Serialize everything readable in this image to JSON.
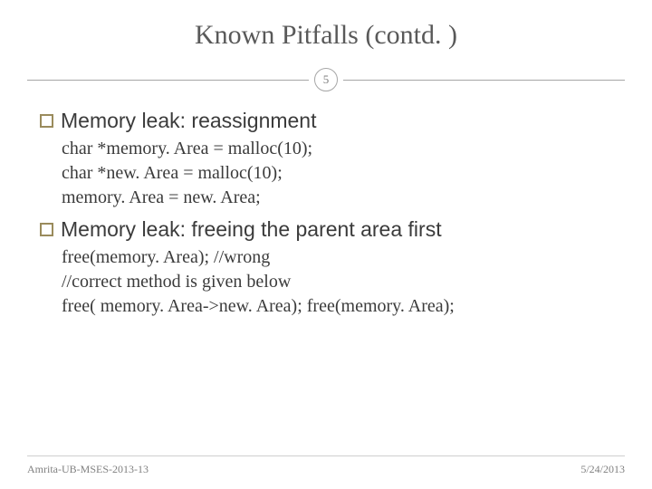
{
  "slide": {
    "title": "Known Pitfalls (contd. )",
    "page_number": "5",
    "sections": [
      {
        "heading": "Memory leak: reassignment",
        "lines": [
          "char *memory. Area = malloc(10);",
          "char *new. Area = malloc(10);",
          "memory. Area = new. Area;"
        ]
      },
      {
        "heading": "Memory leak: freeing the parent area first",
        "lines": [
          "free(memory. Area); //wrong",
          "//correct method is given below",
          "free( memory. Area->new. Area); free(memory. Area);"
        ]
      }
    ],
    "footer_left": "Amrita-UB-MSES-2013-13",
    "footer_right": "5/24/2013"
  },
  "style": {
    "title_color": "#595959",
    "title_fontsize": 30,
    "heading_fontsize": 23,
    "body_fontsize": 20,
    "bullet_border_color": "#9a8b5c",
    "divider_color": "#a6a6a6",
    "text_color": "#3b3b3b",
    "footer_color": "#808080",
    "footer_fontsize": 12,
    "background": "#ffffff"
  }
}
